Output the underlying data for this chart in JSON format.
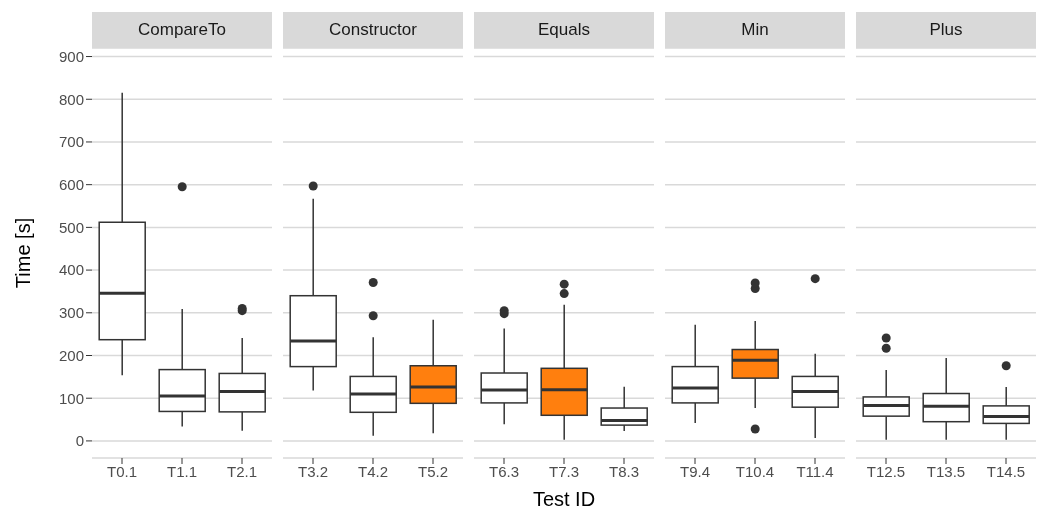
{
  "chart_data": [
    {
      "type": "box",
      "title": "CompareTo",
      "ylabel": "Time [s]",
      "categories": [
        "T0.1",
        "T1.1",
        "T2.1"
      ],
      "colors": [
        "#ffffff",
        "#ffffff",
        "#ffffff"
      ],
      "ylim": [
        -40,
        920
      ],
      "yticks": [
        0,
        100,
        200,
        300,
        400,
        500,
        600,
        700,
        800,
        900
      ],
      "grid": "y",
      "boxes": [
        {
          "low": 154,
          "q1": 237,
          "median": 346,
          "q3": 512,
          "high": 815
        },
        {
          "low": 34,
          "q1": 69,
          "median": 105,
          "q3": 167,
          "high": 309,
          "outliers": [
            595
          ]
        },
        {
          "low": 24,
          "q1": 68,
          "median": 116,
          "q3": 158,
          "high": 241,
          "outliers": [
            305,
            310
          ]
        }
      ]
    },
    {
      "type": "box",
      "title": "Constructor",
      "categories": [
        "T3.2",
        "T4.2",
        "T5.2"
      ],
      "colors": [
        "#ffffff",
        "#ffffff",
        "#ff7f0e"
      ],
      "ylim": [
        -40,
        920
      ],
      "yticks": [
        0,
        100,
        200,
        300,
        400,
        500,
        600,
        700,
        800,
        900
      ],
      "grid": "y",
      "tick_labels": "x",
      "boxes": [
        {
          "low": 118,
          "q1": 174,
          "median": 234,
          "q3": 340,
          "high": 567,
          "outliers": [
            597
          ]
        },
        {
          "low": 12,
          "q1": 67,
          "median": 110,
          "q3": 151,
          "high": 243,
          "outliers": [
            293,
            371
          ]
        },
        {
          "low": 18,
          "q1": 88,
          "median": 126,
          "q3": 176,
          "high": 284
        }
      ]
    },
    {
      "type": "box",
      "title": "Equals",
      "xlabel": "Test ID",
      "categories": [
        "T6.3",
        "T7.3",
        "T8.3"
      ],
      "colors": [
        "#ffffff",
        "#ff7f0e",
        "#ffffff"
      ],
      "ylim": [
        -40,
        920
      ],
      "yticks": [
        0,
        100,
        200,
        300,
        400,
        500,
        600,
        700,
        800,
        900
      ],
      "grid": "y",
      "tick_labels": "x",
      "boxes": [
        {
          "low": 39,
          "q1": 89,
          "median": 119,
          "q3": 159,
          "high": 263,
          "outliers": [
            298,
            305
          ]
        },
        {
          "low": 3,
          "q1": 60,
          "median": 120,
          "q3": 170,
          "high": 319,
          "outliers": [
            345,
            367
          ]
        },
        {
          "low": 23,
          "q1": 37,
          "median": 48,
          "q3": 77,
          "high": 127
        }
      ]
    },
    {
      "type": "box",
      "title": "Min",
      "categories": [
        "T9.4",
        "T10.4",
        "T11.4"
      ],
      "colors": [
        "#ffffff",
        "#ff7f0e",
        "#ffffff"
      ],
      "ylim": [
        -40,
        920
      ],
      "yticks": [
        0,
        100,
        200,
        300,
        400,
        500,
        600,
        700,
        800,
        900
      ],
      "grid": "y",
      "tick_labels": "x",
      "boxes": [
        {
          "low": 42,
          "q1": 89,
          "median": 124,
          "q3": 174,
          "high": 272
        },
        {
          "low": 77,
          "q1": 147,
          "median": 189,
          "q3": 214,
          "high": 281,
          "outliers": [
            28,
            357,
            370
          ]
        },
        {
          "low": 7,
          "q1": 79,
          "median": 116,
          "q3": 151,
          "high": 204,
          "outliers": [
            380
          ]
        }
      ]
    },
    {
      "type": "box",
      "title": "Plus",
      "categories": [
        "T12.5",
        "T13.5",
        "T14.5"
      ],
      "colors": [
        "#ffffff",
        "#ffffff",
        "#ffffff"
      ],
      "ylim": [
        -40,
        920
      ],
      "yticks": [
        0,
        100,
        200,
        300,
        400,
        500,
        600,
        700,
        800,
        900
      ],
      "grid": "y",
      "tick_labels": "x",
      "boxes": [
        {
          "low": 3,
          "q1": 58,
          "median": 83,
          "q3": 103,
          "high": 166,
          "outliers": [
            217,
            241
          ]
        },
        {
          "low": 3,
          "q1": 45,
          "median": 81,
          "q3": 111,
          "high": 194
        },
        {
          "low": 3,
          "q1": 41,
          "median": 57,
          "q3": 82,
          "high": 126,
          "outliers": [
            176
          ]
        }
      ]
    }
  ]
}
